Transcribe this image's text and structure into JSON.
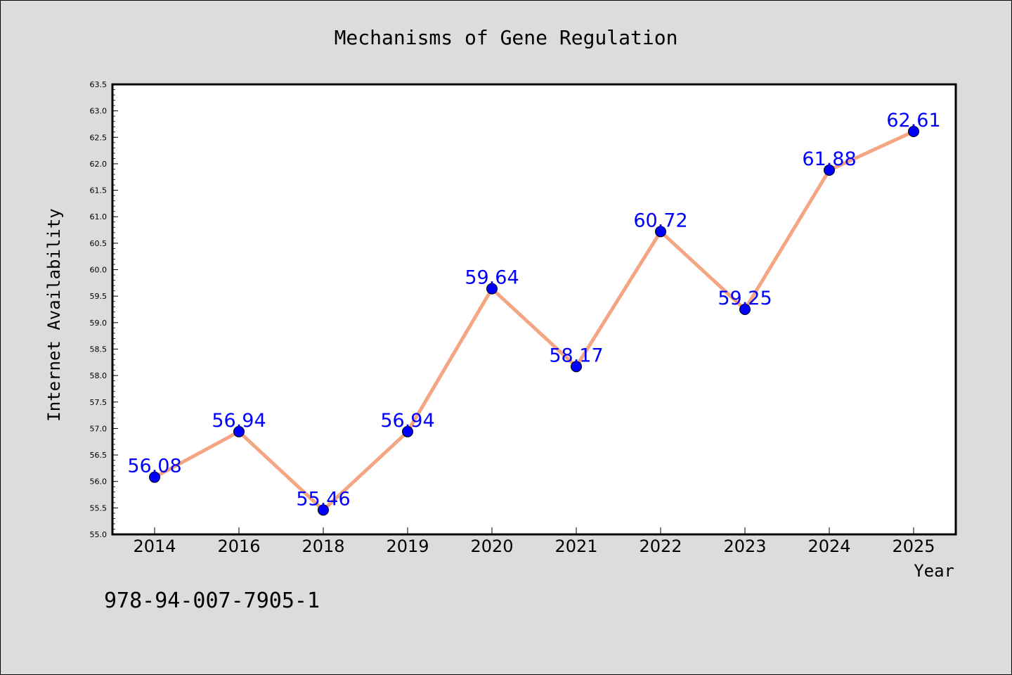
{
  "chart_data": {
    "type": "line",
    "title": "Mechanisms of Gene Regulation",
    "xlabel": "Year",
    "ylabel": "Internet Availability",
    "categories": [
      "2014",
      "2016",
      "2018",
      "2019",
      "2020",
      "2021",
      "2022",
      "2023",
      "2024",
      "2025"
    ],
    "series": [
      {
        "values": [
          56.08,
          56.94,
          55.46,
          56.94,
          59.64,
          58.17,
          60.72,
          59.25,
          61.88,
          62.61
        ],
        "line_color": "#f4a582",
        "marker_color": "#0000ff",
        "label_color": "#0000ff"
      }
    ],
    "data_labels": [
      "56.08",
      "56.94",
      "55.46",
      "56.94",
      "59.64",
      "58.17",
      "60.72",
      "59.25",
      "61.88",
      "62.61"
    ],
    "ylim": [
      55.0,
      63.5
    ],
    "yticks": [
      "55.0",
      "55.5",
      "56.0",
      "56.5",
      "57.0",
      "57.5",
      "58.0",
      "58.5",
      "59.0",
      "59.5",
      "60.0",
      "60.5",
      "61.0",
      "61.5",
      "62.0",
      "62.5",
      "63.0",
      "63.5"
    ],
    "grid": false,
    "legend": "none",
    "background_color": "#dcdcdc",
    "plot_background_color": "#ffffff"
  },
  "footnote": "978-94-007-7905-1"
}
